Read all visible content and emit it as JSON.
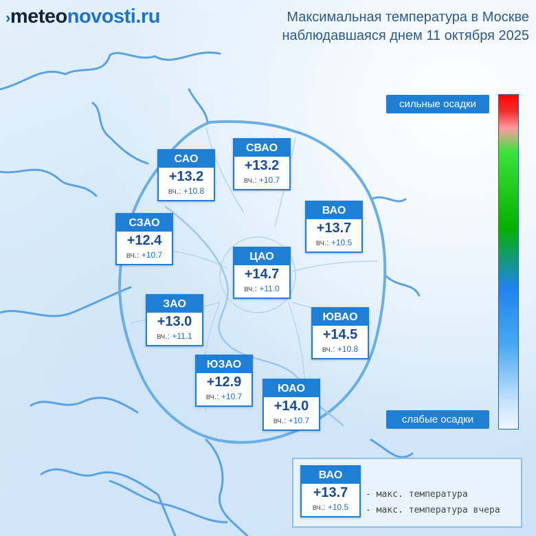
{
  "logo": {
    "mark": "›",
    "part1": "meteo",
    "part2": "novosti.ru"
  },
  "title": {
    "line1": "Максимальная температура в Москве",
    "line2": "наблюдавшаяся днем 11 октября 2025"
  },
  "districts": [
    {
      "id": "sao",
      "name": "САО",
      "temp": "+13.2",
      "yesterday_prefix": "вч.:",
      "yesterday": "+10.8"
    },
    {
      "id": "svao",
      "name": "СВАО",
      "temp": "+13.2",
      "yesterday_prefix": "вч.:",
      "yesterday": "+10.7"
    },
    {
      "id": "szao",
      "name": "СЗАО",
      "temp": "+12.4",
      "yesterday_prefix": "вч.:",
      "yesterday": "+10.7"
    },
    {
      "id": "vao",
      "name": "ВАО",
      "temp": "+13.7",
      "yesterday_prefix": "вч.:",
      "yesterday": "+10.5"
    },
    {
      "id": "tsao",
      "name": "ЦАО",
      "temp": "+14.7",
      "yesterday_prefix": "вч.:",
      "yesterday": "+11.0"
    },
    {
      "id": "zao",
      "name": "ЗАО",
      "temp": "+13.0",
      "yesterday_prefix": "вч.:",
      "yesterday": "+11.1"
    },
    {
      "id": "yuvao",
      "name": "ЮВАО",
      "temp": "+14.5",
      "yesterday_prefix": "вч.:",
      "yesterday": "+10.8"
    },
    {
      "id": "yuzao",
      "name": "ЮЗАО",
      "temp": "+12.9",
      "yesterday_prefix": "вч.:",
      "yesterday": "+10.7"
    },
    {
      "id": "yuao",
      "name": "ЮАО",
      "temp": "+14.0",
      "yesterday_prefix": "вч.:",
      "yesterday": "+10.7"
    }
  ],
  "scale": {
    "top_label": "сильные осадки",
    "bottom_label": "слабые осадки"
  },
  "legend": {
    "sample": {
      "name": "ВАО",
      "temp": "+13.7",
      "yesterday_prefix": "вч.:",
      "yesterday": "+10.5"
    },
    "max_temp": "- макс. температура",
    "max_temp_yesterday": "- макс. температура вчера"
  },
  "colors": {
    "accent": "#1f7fd4",
    "title": "#2d5a8a",
    "temp_text": "#1a4a90",
    "boundary": "#5a9fdc"
  }
}
